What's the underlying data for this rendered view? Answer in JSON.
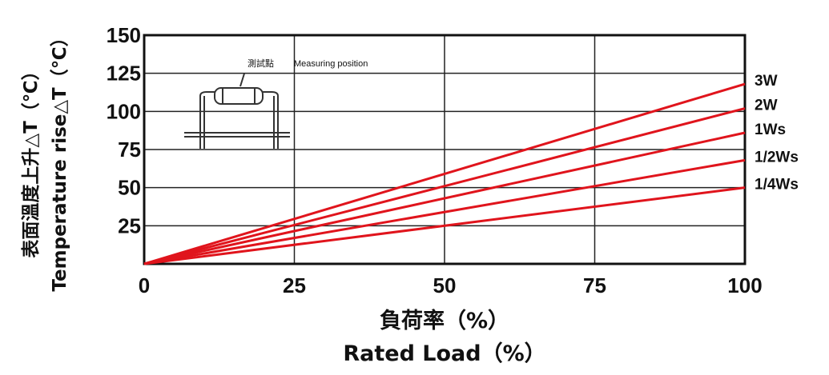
{
  "chart_data": {
    "type": "line",
    "xlabel_cn": "負荷率（%）",
    "xlabel": "Rated Load（%）",
    "ylabel_cn": "表面溫度上升△T（℃）",
    "ylabel": "Temperature rise△T（℃）",
    "xlim": [
      0,
      100
    ],
    "ylim": [
      0,
      150
    ],
    "x_ticks": [
      0,
      25,
      50,
      75,
      100
    ],
    "y_ticks": [
      25,
      50,
      75,
      100,
      125,
      150
    ],
    "grid": true,
    "series": [
      {
        "name": "3W",
        "x": [
          0,
          100
        ],
        "y": [
          0,
          118
        ]
      },
      {
        "name": "2W",
        "x": [
          0,
          100
        ],
        "y": [
          0,
          102
        ]
      },
      {
        "name": "1Ws",
        "x": [
          0,
          100
        ],
        "y": [
          0,
          86
        ]
      },
      {
        "name": "1/2Ws",
        "x": [
          0,
          100
        ],
        "y": [
          0,
          68
        ]
      },
      {
        "name": "1/4Ws",
        "x": [
          0,
          100
        ],
        "y": [
          0,
          50
        ]
      }
    ],
    "line_color": "#e0141c",
    "inset_annotation": {
      "cn": "測試點",
      "en": "Measuring position"
    }
  }
}
